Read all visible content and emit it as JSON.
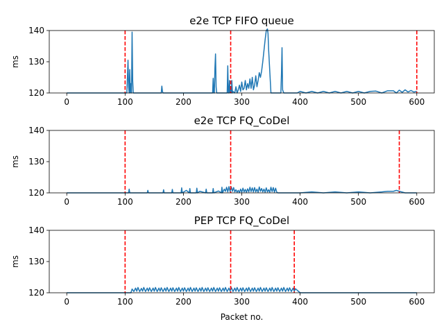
{
  "chart_data": [
    {
      "type": "line",
      "title": "e2e TCP FIFO queue",
      "xlabel": "",
      "ylabel": "ms",
      "xlim": [
        -30,
        630
      ],
      "ylim": [
        120,
        140
      ],
      "xticks": [
        0,
        100,
        200,
        300,
        400,
        500,
        600
      ],
      "yticks": [
        120,
        130,
        140
      ],
      "grid": false,
      "line_color": "#1f77b4",
      "marker_color": "#ff0000",
      "vlines": [
        100,
        281,
        600
      ],
      "series": [
        {
          "x": [
            0,
            100,
            103,
            104,
            105,
            106,
            107,
            108,
            109,
            110,
            111,
            112,
            113,
            114,
            116,
            160,
            162,
            163,
            164,
            165,
            166,
            168,
            250,
            251,
            252,
            253,
            254,
            255,
            256,
            257,
            258,
            259,
            275,
            276,
            277,
            278,
            279,
            280,
            281,
            282,
            283,
            284,
            285,
            288,
            290,
            292,
            294,
            296,
            298,
            300,
            302,
            304,
            306,
            308,
            310,
            312,
            314,
            316,
            318,
            320,
            322,
            324,
            326,
            328,
            330,
            332,
            334,
            336,
            338,
            340,
            342,
            344,
            345,
            346,
            348,
            350,
            352,
            354,
            356,
            358,
            360,
            362,
            364,
            366,
            367,
            368,
            369,
            370,
            372,
            380,
            385,
            390,
            395,
            400,
            410,
            420,
            430,
            440,
            450,
            460,
            470,
            480,
            490,
            500,
            510,
            520,
            530,
            540,
            550,
            560,
            565,
            570,
            575,
            580,
            585,
            590,
            595,
            600
          ],
          "y": [
            120,
            120,
            120,
            125,
            130.5,
            122,
            120,
            127.5,
            120,
            123,
            120,
            139.5,
            124,
            120,
            120,
            120,
            120,
            122.2,
            120.5,
            120,
            120,
            120,
            120,
            124.7,
            120,
            120,
            128,
            132.5,
            122,
            120,
            120,
            120,
            120,
            128.7,
            120,
            120,
            124,
            120,
            121.5,
            120,
            124,
            120,
            120.5,
            120,
            122,
            120,
            121,
            122.5,
            120.5,
            123.5,
            121,
            121.5,
            124,
            121,
            123,
            121.5,
            124.5,
            121.5,
            125,
            121,
            122.5,
            125.5,
            122,
            124,
            126.5,
            125,
            127,
            130,
            133.5,
            137,
            140,
            140.5,
            139,
            134,
            127,
            120,
            120,
            120,
            120,
            120,
            120,
            120,
            120,
            120,
            120,
            126,
            134.5,
            121,
            120,
            120,
            120,
            120,
            120,
            120.5,
            120,
            120.5,
            120,
            120.5,
            120,
            120.5,
            120,
            120.5,
            120,
            120.5,
            120,
            120.5,
            120.6,
            120,
            120.7,
            120.7,
            120,
            120.9,
            120.2,
            121,
            120.3,
            120.8,
            120.3,
            120.5
          ]
        }
      ]
    },
    {
      "type": "line",
      "title": "e2e TCP FQ_CoDel",
      "xlabel": "",
      "ylabel": "ms",
      "xlim": [
        -30,
        630
      ],
      "ylim": [
        120,
        140
      ],
      "xticks": [
        0,
        100,
        200,
        300,
        400,
        500,
        600
      ],
      "yticks": [
        120,
        130,
        140
      ],
      "grid": false,
      "line_color": "#1f77b4",
      "marker_color": "#ff0000",
      "vlines": [
        100,
        281,
        570
      ],
      "series": [
        {
          "x": [
            0,
            100,
            106,
            107,
            108,
            120,
            138,
            139,
            140,
            165,
            166,
            167,
            180,
            181,
            182,
            196,
            197,
            198,
            205,
            210,
            211,
            212,
            222,
            223,
            224,
            228,
            238,
            239,
            240,
            250,
            251,
            252,
            260,
            265,
            266,
            267,
            270,
            272,
            274,
            276,
            278,
            280,
            282,
            284,
            286,
            288,
            290,
            292,
            294,
            296,
            298,
            300,
            302,
            304,
            306,
            308,
            310,
            312,
            314,
            316,
            318,
            320,
            322,
            324,
            326,
            328,
            330,
            332,
            334,
            336,
            338,
            340,
            342,
            344,
            346,
            348,
            350,
            352,
            354,
            356,
            358,
            360,
            362,
            370,
            380,
            400,
            420,
            440,
            460,
            480,
            500,
            520,
            540,
            550,
            560,
            565,
            570,
            580,
            590,
            600
          ],
          "y": [
            120,
            120,
            120,
            121.2,
            120,
            120,
            120,
            120.8,
            120,
            120,
            121,
            120,
            120,
            121.1,
            120,
            120,
            121.6,
            120,
            120.8,
            120,
            121.4,
            120,
            120,
            121.5,
            120,
            120.5,
            120,
            121.2,
            120,
            120,
            121.4,
            120,
            120.6,
            120,
            121.8,
            120,
            121.2,
            120.5,
            121.8,
            120.3,
            122,
            120.4,
            121.9,
            120.5,
            121.7,
            120.3,
            121,
            120.2,
            120.8,
            120.1,
            121.2,
            120.2,
            121.5,
            120.3,
            121.1,
            120.2,
            121.3,
            120.3,
            121.8,
            120.4,
            121.6,
            120.3,
            121.7,
            120.3,
            121.2,
            120.2,
            121.9,
            120.5,
            121.4,
            120.3,
            121.2,
            120.2,
            121.6,
            120.3,
            121,
            120.2,
            121.8,
            120.4,
            121.7,
            120.2,
            121.5,
            120.2,
            120,
            120,
            120,
            120,
            120.3,
            120,
            120.3,
            120,
            120.3,
            120,
            120.3,
            120.5,
            120.5,
            120.8,
            120.5,
            120,
            120,
            120
          ]
        }
      ]
    },
    {
      "type": "line",
      "title": "PEP TCP FQ_CoDel",
      "xlabel": "Packet no.",
      "ylabel": "ms",
      "xlim": [
        -30,
        630
      ],
      "ylim": [
        120,
        140
      ],
      "xticks": [
        0,
        100,
        200,
        300,
        400,
        500,
        600
      ],
      "yticks": [
        120,
        130,
        140
      ],
      "grid": false,
      "line_color": "#1f77b4",
      "marker_color": "#ff0000",
      "vlines": [
        100,
        281,
        390
      ],
      "series": [
        {
          "x": [
            0,
            100,
            110,
            112,
            115,
            118,
            120,
            122,
            125,
            128,
            130,
            132,
            135,
            138,
            140,
            142,
            145,
            148,
            150,
            152,
            155,
            158,
            160,
            162,
            165,
            168,
            170,
            172,
            175,
            178,
            180,
            182,
            185,
            188,
            190,
            192,
            195,
            198,
            200,
            202,
            205,
            208,
            210,
            212,
            215,
            218,
            220,
            222,
            225,
            228,
            230,
            232,
            235,
            238,
            240,
            242,
            245,
            248,
            250,
            252,
            255,
            258,
            260,
            262,
            265,
            268,
            270,
            272,
            275,
            278,
            280,
            282,
            285,
            288,
            290,
            292,
            295,
            298,
            300,
            302,
            305,
            308,
            310,
            312,
            315,
            318,
            320,
            322,
            325,
            328,
            330,
            332,
            335,
            338,
            340,
            342,
            345,
            348,
            350,
            352,
            355,
            358,
            360,
            362,
            365,
            368,
            370,
            372,
            375,
            378,
            380,
            382,
            385,
            388,
            390,
            392,
            400,
            600
          ],
          "y": [
            120,
            120,
            120,
            121.2,
            120.4,
            121.5,
            120.5,
            121.7,
            120.4,
            121.4,
            120.5,
            121.7,
            120.4,
            121.5,
            120.5,
            121.6,
            120.4,
            121.5,
            120.5,
            121.7,
            120.4,
            121.5,
            120.5,
            121.6,
            120.4,
            121.5,
            120.5,
            121.7,
            120.4,
            121.5,
            120.5,
            121.6,
            120.4,
            121.5,
            120.5,
            121.7,
            120.4,
            121.5,
            120.5,
            121.6,
            120.4,
            121.5,
            120.5,
            121.7,
            120.4,
            121.5,
            120.5,
            121.6,
            120.4,
            121.5,
            120.5,
            121.7,
            120.4,
            121.5,
            120.5,
            121.6,
            120.4,
            121.5,
            120.5,
            121.7,
            120.4,
            121.5,
            120.5,
            121.6,
            120.4,
            121.5,
            120.5,
            121.7,
            120.4,
            121.5,
            120.5,
            121.7,
            120.4,
            121.5,
            120.5,
            121.7,
            120.4,
            121.5,
            120.5,
            121.6,
            120.4,
            121.5,
            120.5,
            121.7,
            120.4,
            121.5,
            120.5,
            121.6,
            120.4,
            121.5,
            120.5,
            121.7,
            120.4,
            121.5,
            120.5,
            121.6,
            120.4,
            121.5,
            120.5,
            121.7,
            120.4,
            121.5,
            120.5,
            121.6,
            120.4,
            121.5,
            120.5,
            121.7,
            120.4,
            121.5,
            120.5,
            121.6,
            120.4,
            121.5,
            120.5,
            121.3,
            120,
            120
          ]
        }
      ]
    }
  ]
}
